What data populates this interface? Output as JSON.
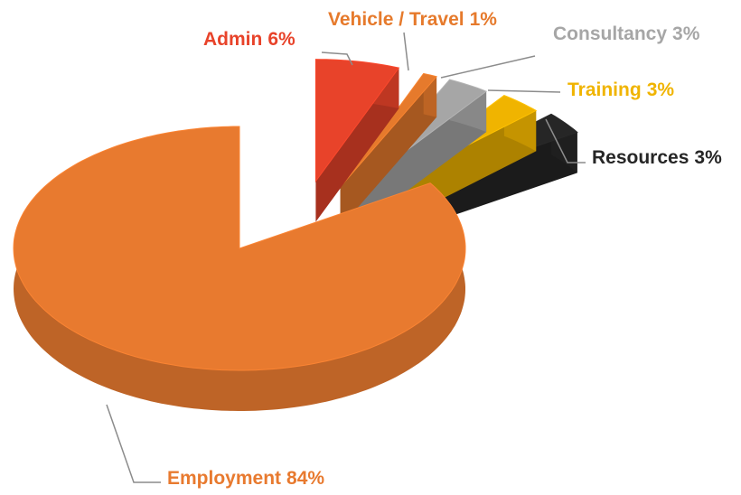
{
  "chart_data": {
    "type": "pie",
    "categories": [
      "Admin",
      "Vehicle / Travel",
      "Consultancy",
      "Training",
      "Resources",
      "Employment"
    ],
    "values": [
      6,
      1,
      3,
      3,
      3,
      84
    ],
    "value_labels": [
      "6%",
      "1%",
      "3%",
      "3%",
      "3%",
      "84%"
    ],
    "colors": [
      "#e8432a",
      "#e67a2c",
      "#a6a6a6",
      "#f0b400",
      "#262626",
      "#e87a2f"
    ],
    "label_colors": [
      "#e8432a",
      "#e67a2c",
      "#a6a6a6",
      "#f0b400",
      "#262626",
      "#e87a2f"
    ]
  }
}
